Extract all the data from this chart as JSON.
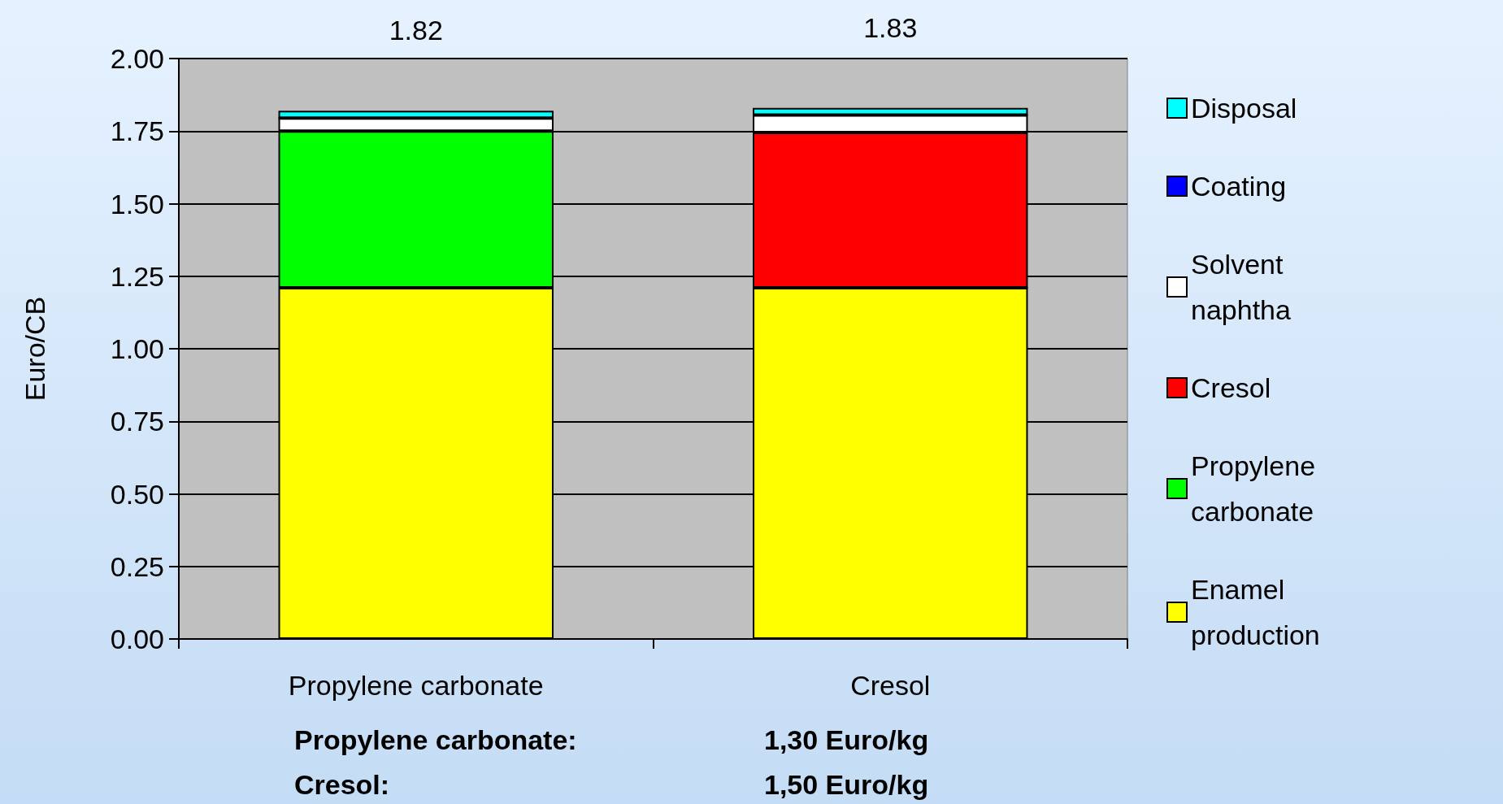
{
  "chart_data": {
    "type": "bar",
    "stacked": true,
    "ylabel": "Euro/CB",
    "categories": [
      "Propylene carbonate",
      "Cresol"
    ],
    "series": [
      {
        "name": "Enamel production",
        "color": "#ffff00",
        "values": [
          1.21,
          1.21
        ]
      },
      {
        "name": "Propylene carbonate",
        "color": "#00ff00",
        "values": [
          0.54,
          0
        ]
      },
      {
        "name": "Cresol",
        "color": "#ff0000",
        "values": [
          0,
          0.535
        ]
      },
      {
        "name": "Solvent naphtha",
        "color": "#ffffff",
        "values": [
          0.045,
          0.06
        ]
      },
      {
        "name": "Coating",
        "color": "#0000ff",
        "values": [
          0,
          0
        ]
      },
      {
        "name": "Disposal",
        "color": "#00ffff",
        "values": [
          0.025,
          0.025
        ]
      }
    ],
    "totals": [
      "1.82",
      "1.83"
    ],
    "ylim": [
      0,
      2
    ],
    "yticks": [
      {
        "value": 0,
        "label": "0.00"
      },
      {
        "value": 0.25,
        "label": "0.25"
      },
      {
        "value": 0.5,
        "label": "0.50"
      },
      {
        "value": 0.75,
        "label": "0.75"
      },
      {
        "value": 1,
        "label": "1.00"
      },
      {
        "value": 1.25,
        "label": "1.25"
      },
      {
        "value": 1.5,
        "label": "1.50"
      },
      {
        "value": 1.75,
        "label": "1.75"
      },
      {
        "value": 2,
        "label": "2.00"
      }
    ],
    "grid": "y",
    "legend": "right",
    "annotations": [
      "Propylene carbonate:",
      "1,30 Euro/kg",
      "Cresol:",
      "1,50 Euro/kg"
    ]
  }
}
